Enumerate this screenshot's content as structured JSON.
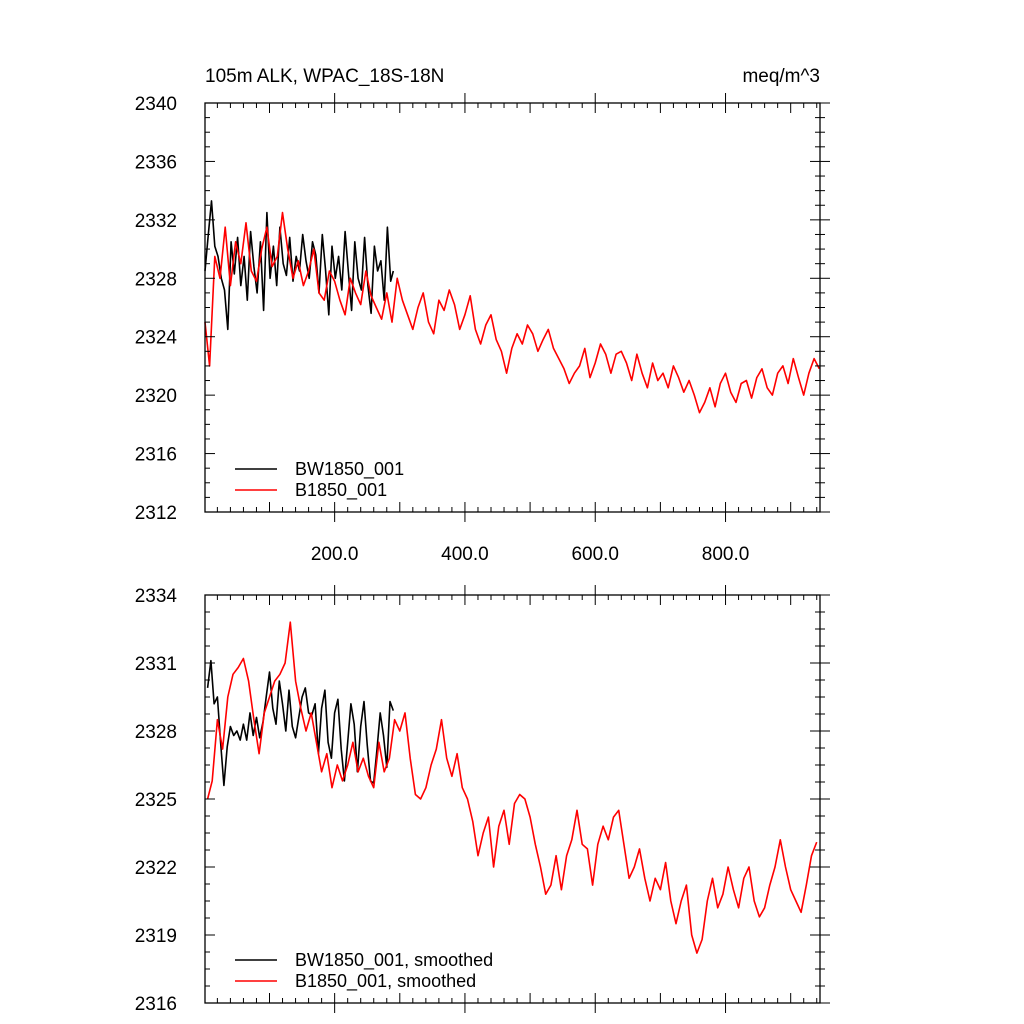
{
  "chart_data": [
    {
      "type": "line",
      "title": "105m ALK, WPAC_18S-18N",
      "units": "meq/m^3",
      "xlim": [
        1,
        945
      ],
      "ylim": [
        2312,
        2340
      ],
      "x_ticks": [
        200,
        400,
        600,
        800
      ],
      "x_tick_labels": [
        "200.0",
        "400.0",
        "600.0",
        "800.0"
      ],
      "y_ticks": [
        2312,
        2316,
        2320,
        2324,
        2328,
        2332,
        2336,
        2340
      ],
      "y_tick_labels": [
        "2312",
        "2316",
        "2320",
        "2324",
        "2328",
        "2332",
        "2336",
        "2340"
      ],
      "legend_position": "bottom-left",
      "series": [
        {
          "name": "BW1850_001",
          "color": "#000000",
          "x": [
            1,
            6,
            11,
            16,
            21,
            26,
            31,
            36,
            41,
            46,
            51,
            56,
            61,
            66,
            71,
            76,
            81,
            86,
            91,
            96,
            101,
            106,
            111,
            116,
            121,
            126,
            131,
            136,
            141,
            146,
            151,
            156,
            161,
            166,
            171,
            176,
            181,
            186,
            191,
            196,
            201,
            206,
            211,
            216,
            221,
            226,
            231,
            236,
            241,
            246,
            251,
            256,
            261,
            266,
            271,
            276,
            281,
            286,
            290
          ],
          "values": [
            2328.5,
            2331.0,
            2333.3,
            2330.2,
            2329.5,
            2328.0,
            2327.2,
            2324.5,
            2330.5,
            2328.3,
            2330.8,
            2327.5,
            2329.5,
            2326.5,
            2331.2,
            2328.8,
            2327.0,
            2330.5,
            2325.8,
            2332.5,
            2328.0,
            2330.2,
            2327.5,
            2331.5,
            2329.0,
            2328.2,
            2330.8,
            2327.8,
            2329.5,
            2328.5,
            2331.0,
            2329.2,
            2328.0,
            2330.5,
            2329.6,
            2327.0,
            2331.0,
            2328.6,
            2325.5,
            2330.2,
            2328.0,
            2329.5,
            2327.2,
            2331.2,
            2328.5,
            2325.8,
            2330.5,
            2328.0,
            2327.2,
            2330.8,
            2327.5,
            2325.6,
            2330.2,
            2328.5,
            2329.2,
            2326.5,
            2331.5,
            2327.8,
            2328.5
          ]
        },
        {
          "name": "B1850_001",
          "color": "#ff0000",
          "x": [
            1,
            8,
            16,
            24,
            32,
            40,
            48,
            56,
            64,
            72,
            80,
            88,
            96,
            104,
            112,
            120,
            128,
            136,
            144,
            152,
            160,
            168,
            176,
            184,
            192,
            200,
            208,
            216,
            224,
            232,
            240,
            248,
            256,
            264,
            272,
            280,
            288,
            296,
            304,
            312,
            320,
            328,
            336,
            344,
            352,
            360,
            368,
            376,
            384,
            392,
            400,
            408,
            416,
            424,
            432,
            440,
            448,
            456,
            464,
            472,
            480,
            488,
            496,
            504,
            512,
            520,
            528,
            536,
            544,
            552,
            560,
            568,
            576,
            584,
            592,
            600,
            608,
            616,
            624,
            632,
            640,
            648,
            656,
            664,
            672,
            680,
            688,
            696,
            704,
            712,
            720,
            728,
            736,
            744,
            752,
            760,
            768,
            776,
            784,
            792,
            800,
            808,
            816,
            824,
            832,
            840,
            848,
            856,
            864,
            872,
            880,
            888,
            896,
            904,
            912,
            920,
            928,
            936,
            944
          ],
          "values": [
            2325.0,
            2322.0,
            2329.5,
            2328.0,
            2331.5,
            2327.5,
            2330.5,
            2329.0,
            2331.8,
            2328.5,
            2327.8,
            2330.0,
            2331.5,
            2328.8,
            2329.5,
            2332.5,
            2330.0,
            2328.0,
            2329.2,
            2327.5,
            2328.5,
            2330.0,
            2327.0,
            2326.5,
            2328.5,
            2327.8,
            2326.5,
            2325.5,
            2328.0,
            2327.0,
            2326.2,
            2328.5,
            2326.8,
            2326.0,
            2325.2,
            2327.0,
            2325.0,
            2328.0,
            2326.5,
            2325.5,
            2324.5,
            2326.0,
            2327.0,
            2325.0,
            2324.2,
            2326.5,
            2325.8,
            2327.2,
            2326.2,
            2324.5,
            2325.5,
            2326.8,
            2324.5,
            2323.5,
            2324.8,
            2325.5,
            2323.8,
            2323.0,
            2321.5,
            2323.2,
            2324.2,
            2323.5,
            2324.8,
            2324.2,
            2323.0,
            2323.8,
            2324.5,
            2323.2,
            2322.5,
            2321.8,
            2320.8,
            2321.5,
            2322.0,
            2323.2,
            2321.2,
            2322.2,
            2323.5,
            2322.8,
            2321.5,
            2322.8,
            2323.0,
            2322.2,
            2321.0,
            2322.8,
            2321.5,
            2320.5,
            2322.2,
            2321.0,
            2321.5,
            2320.5,
            2322.0,
            2321.2,
            2320.2,
            2321.0,
            2320.0,
            2318.8,
            2319.5,
            2320.5,
            2319.2,
            2320.8,
            2321.5,
            2320.2,
            2319.5,
            2320.8,
            2321.0,
            2319.8,
            2321.2,
            2321.8,
            2320.5,
            2320.0,
            2321.5,
            2322.0,
            2320.8,
            2322.5,
            2321.2,
            2320.0,
            2321.5,
            2322.5,
            2321.8
          ]
        }
      ]
    },
    {
      "type": "line",
      "title": "",
      "xlim": [
        1,
        945
      ],
      "ylim": [
        2316,
        2334
      ],
      "y_ticks": [
        2316,
        2319,
        2322,
        2325,
        2328,
        2331,
        2334
      ],
      "y_tick_labels": [
        "2316",
        "2319",
        "2322",
        "2325",
        "2328",
        "2331",
        "2334"
      ],
      "legend_position": "bottom-left",
      "series": [
        {
          "name": "BW1850_001, smoothed",
          "color": "#000000",
          "x": [
            5,
            10,
            15,
            20,
            25,
            30,
            35,
            40,
            45,
            50,
            55,
            60,
            65,
            70,
            75,
            80,
            85,
            90,
            95,
            100,
            105,
            110,
            115,
            120,
            125,
            130,
            135,
            140,
            145,
            150,
            155,
            160,
            165,
            170,
            175,
            180,
            185,
            190,
            195,
            200,
            205,
            210,
            215,
            220,
            225,
            230,
            235,
            240,
            245,
            250,
            255,
            260,
            265,
            270,
            275,
            280,
            285,
            290
          ],
          "values": [
            2329.9,
            2331.1,
            2329.2,
            2329.5,
            2327.5,
            2325.6,
            2327.3,
            2328.2,
            2327.8,
            2328.0,
            2327.6,
            2328.3,
            2327.6,
            2328.8,
            2327.8,
            2328.6,
            2327.7,
            2328.4,
            2329.5,
            2330.6,
            2329.0,
            2328.3,
            2330.2,
            2329.2,
            2328.0,
            2329.8,
            2328.2,
            2327.7,
            2328.6,
            2329.5,
            2329.9,
            2328.8,
            2328.7,
            2329.2,
            2327.0,
            2329.0,
            2329.8,
            2327.5,
            2326.8,
            2328.8,
            2329.4,
            2327.2,
            2325.8,
            2327.5,
            2329.2,
            2328.3,
            2326.2,
            2328.2,
            2329.3,
            2327.4,
            2325.8,
            2325.7,
            2327.2,
            2328.8,
            2327.8,
            2326.4,
            2329.3,
            2328.9
          ]
        },
        {
          "name": "B1850_001, smoothed",
          "color": "#ff0000",
          "x": [
            5,
            12,
            20,
            28,
            36,
            44,
            52,
            60,
            68,
            76,
            84,
            92,
            100,
            108,
            116,
            124,
            132,
            140,
            148,
            156,
            164,
            172,
            180,
            188,
            196,
            204,
            212,
            220,
            228,
            236,
            244,
            252,
            260,
            268,
            276,
            284,
            292,
            300,
            308,
            316,
            324,
            332,
            340,
            348,
            356,
            364,
            372,
            380,
            388,
            396,
            404,
            412,
            420,
            428,
            436,
            444,
            452,
            460,
            468,
            476,
            484,
            492,
            500,
            508,
            516,
            524,
            532,
            540,
            548,
            556,
            564,
            572,
            580,
            588,
            596,
            604,
            612,
            620,
            628,
            636,
            644,
            652,
            660,
            668,
            676,
            684,
            692,
            700,
            708,
            716,
            724,
            732,
            740,
            748,
            756,
            764,
            772,
            780,
            788,
            796,
            804,
            812,
            820,
            828,
            836,
            844,
            852,
            860,
            868,
            876,
            884,
            892,
            900,
            908,
            916,
            924,
            932,
            940
          ],
          "values": [
            2325.0,
            2325.8,
            2328.5,
            2327.2,
            2329.5,
            2330.5,
            2330.8,
            2331.2,
            2330.2,
            2328.5,
            2327.0,
            2328.8,
            2329.5,
            2330.2,
            2330.5,
            2331.0,
            2332.8,
            2330.2,
            2329.0,
            2328.0,
            2328.8,
            2327.5,
            2326.2,
            2327.0,
            2325.5,
            2326.5,
            2325.8,
            2326.5,
            2327.5,
            2326.2,
            2326.8,
            2326.0,
            2325.5,
            2327.5,
            2326.2,
            2326.8,
            2328.5,
            2328.0,
            2328.8,
            2326.8,
            2325.2,
            2325.0,
            2325.5,
            2326.5,
            2327.2,
            2328.5,
            2326.8,
            2326.0,
            2327.0,
            2325.5,
            2325.0,
            2324.0,
            2322.5,
            2323.5,
            2324.2,
            2322.0,
            2323.8,
            2324.5,
            2323.0,
            2324.8,
            2325.2,
            2325.0,
            2324.2,
            2323.0,
            2322.0,
            2320.8,
            2321.2,
            2322.5,
            2321.0,
            2322.5,
            2323.2,
            2324.5,
            2323.0,
            2322.8,
            2321.2,
            2323.0,
            2323.8,
            2323.2,
            2324.2,
            2324.5,
            2323.0,
            2321.5,
            2322.0,
            2322.8,
            2321.5,
            2320.5,
            2321.5,
            2321.0,
            2322.2,
            2320.5,
            2319.5,
            2320.5,
            2321.2,
            2319.0,
            2318.2,
            2318.8,
            2320.5,
            2321.5,
            2320.2,
            2320.8,
            2322.0,
            2321.0,
            2320.2,
            2321.5,
            2322.0,
            2320.5,
            2319.8,
            2320.2,
            2321.2,
            2322.0,
            2323.2,
            2322.0,
            2321.0,
            2320.5,
            2320.0,
            2321.2,
            2322.5,
            2323.1
          ]
        }
      ]
    }
  ]
}
